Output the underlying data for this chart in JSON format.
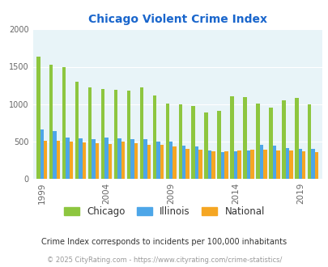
{
  "title": "Chicago Violent Crime Index",
  "subtitle": "Crime Index corresponds to incidents per 100,000 inhabitants",
  "footer": "© 2025 CityRating.com - https://www.cityrating.com/crime-statistics/",
  "years": [
    1999,
    2000,
    2001,
    2002,
    2003,
    2004,
    2005,
    2006,
    2007,
    2008,
    2009,
    2010,
    2011,
    2012,
    2013,
    2014,
    2015,
    2016,
    2017,
    2018,
    2019,
    2020
  ],
  "chicago": [
    1640,
    1530,
    1495,
    1300,
    1220,
    1200,
    1195,
    1185,
    1220,
    1115,
    1005,
    1000,
    975,
    885,
    910,
    1110,
    1090,
    1005,
    950,
    1050,
    1080,
    1000
  ],
  "illinois": [
    665,
    635,
    555,
    540,
    535,
    555,
    540,
    535,
    530,
    500,
    500,
    450,
    430,
    375,
    360,
    370,
    380,
    455,
    450,
    410,
    405,
    400
  ],
  "national": [
    510,
    505,
    500,
    485,
    480,
    470,
    495,
    475,
    455,
    455,
    430,
    405,
    390,
    365,
    370,
    375,
    395,
    395,
    380,
    380,
    370,
    360
  ],
  "color_chicago": "#8dc63f",
  "color_illinois": "#4da6e8",
  "color_national": "#f5a623",
  "bg_color": "#e8f4f8",
  "ylim": [
    0,
    2000
  ],
  "yticks": [
    0,
    500,
    1000,
    1500,
    2000
  ],
  "xtick_positions": [
    1999,
    2004,
    2009,
    2014,
    2019
  ],
  "legend_labels": [
    "Chicago",
    "Illinois",
    "National"
  ],
  "title_color": "#1a66cc",
  "subtitle_color": "#333333",
  "footer_color": "#999999"
}
